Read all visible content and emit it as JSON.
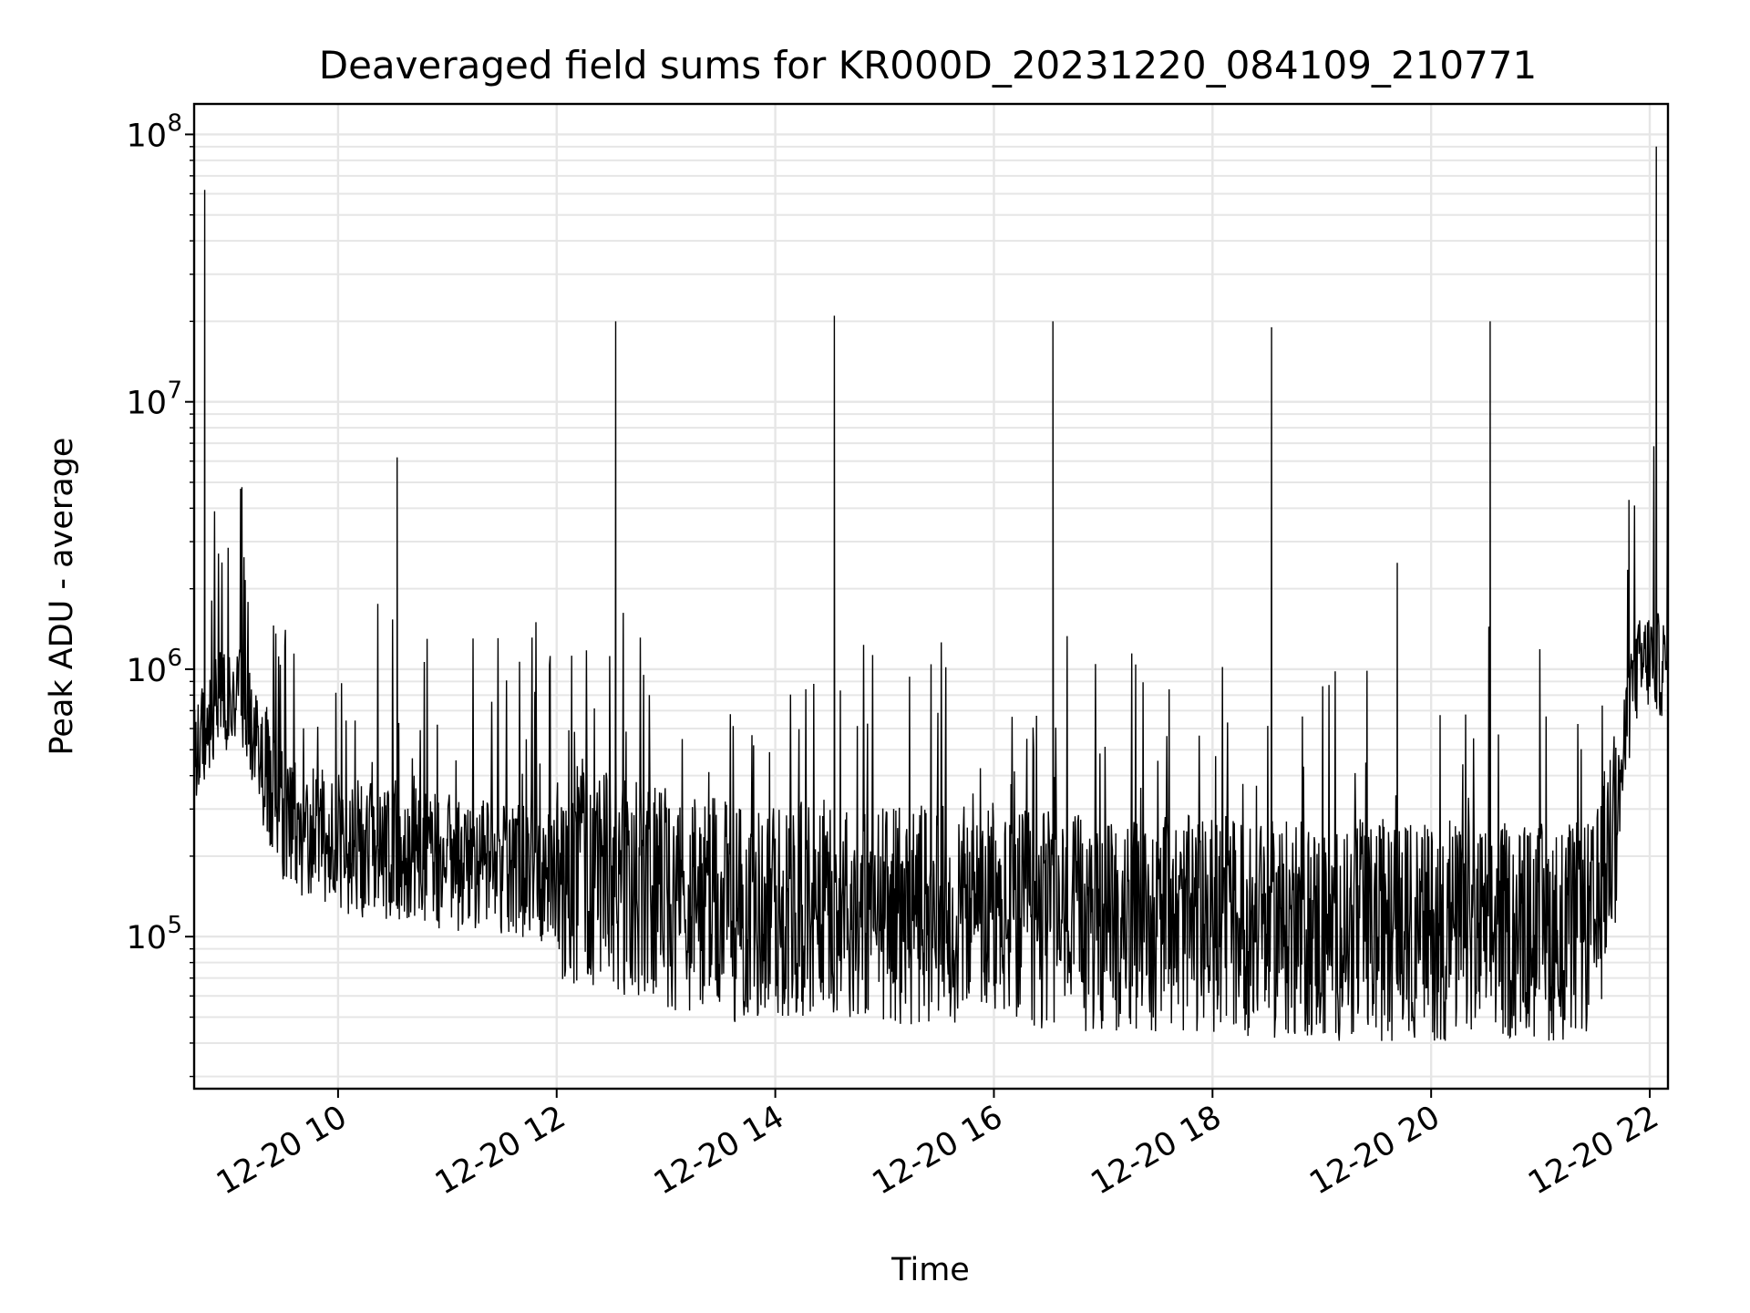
{
  "chart_data": {
    "type": "line",
    "title": "Deaveraged field sums for KR000D_20231220_084109_210771",
    "xlabel": "Time",
    "ylabel": "Peak ADU - average",
    "yscale": "log",
    "ylim": [
      27000,
      130000000
    ],
    "xlim": [
      "12-20 08:41",
      "12-20 22:10"
    ],
    "grid": true,
    "legend": "none",
    "line_color": "#000000",
    "x_ticks": [
      "12-20 10",
      "12-20 12",
      "12-20 14",
      "12-20 16",
      "12-20 18",
      "12-20 20",
      "12-20 22"
    ],
    "x_tick_hours": [
      10,
      12,
      14,
      16,
      18,
      20,
      22
    ],
    "y_ticks": [
      {
        "value": 100000,
        "base": "10",
        "exp": "5"
      },
      {
        "value": 1000000,
        "base": "10",
        "exp": "6"
      },
      {
        "value": 10000000,
        "base": "10",
        "exp": "7"
      },
      {
        "value": 100000000,
        "base": "10",
        "exp": "8"
      }
    ],
    "x_unit": "hours",
    "series": [
      {
        "x": [
          8.7,
          8.85,
          8.9,
          9.1,
          9.3,
          9.5,
          9.8,
          10.0,
          10.2,
          10.5,
          10.8,
          11.0,
          11.3,
          11.5,
          11.8,
          12.0,
          12.3,
          12.6,
          12.9,
          13.2,
          13.5,
          13.8,
          14.2,
          14.5,
          14.8,
          15.2,
          15.5,
          15.8,
          16.2,
          16.5,
          16.8,
          17.2,
          17.5,
          17.8,
          18.2,
          18.5,
          18.8,
          19.2,
          19.5,
          19.8,
          20.2,
          20.5,
          20.8,
          21.2,
          21.5,
          21.7,
          21.85,
          22.0,
          22.15
        ],
        "y": [
          450000,
          620000,
          700000,
          800000,
          420000,
          260000,
          230000,
          210000,
          200000,
          200000,
          190000,
          180000,
          175000,
          165000,
          160000,
          160000,
          150000,
          140000,
          130000,
          120000,
          115000,
          110000,
          115000,
          120000,
          115000,
          110000,
          110000,
          105000,
          105000,
          105000,
          100000,
          100000,
          100000,
          100000,
          100000,
          98000,
          96000,
          95000,
          95000,
          95000,
          95000,
          95000,
          95000,
          94000,
          96000,
          280000,
          900000,
          1050000,
          950000
        ],
        "spikes": [
          {
            "x": 8.78,
            "y": 62000000
          },
          {
            "x": 9.12,
            "y": 4800000
          },
          {
            "x": 10.54,
            "y": 6200000
          },
          {
            "x": 12.54,
            "y": 20000000
          },
          {
            "x": 14.54,
            "y": 21000000
          },
          {
            "x": 16.54,
            "y": 20000000
          },
          {
            "x": 18.54,
            "y": 19000000
          },
          {
            "x": 19.69,
            "y": 2500000
          },
          {
            "x": 20.54,
            "y": 20000000
          },
          {
            "x": 21.81,
            "y": 4300000
          },
          {
            "x": 22.06,
            "y": 90000000
          }
        ]
      }
    ]
  }
}
